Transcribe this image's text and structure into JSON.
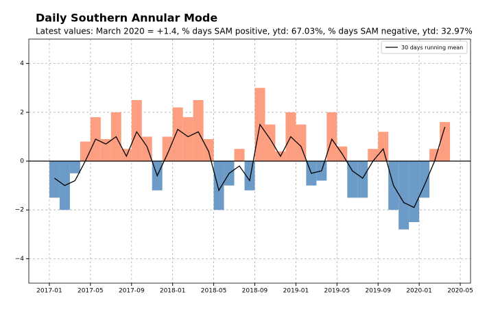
{
  "chart_data": {
    "type": "area",
    "title": "Daily Southern Annular Mode",
    "subtitle": "Latest values: March 2020 = +1.4, % days SAM positive, ytd: 67.03%, % days SAM negative, ytd: 32.97%",
    "x": [
      "2017-01",
      "2017-02",
      "2017-03",
      "2017-04",
      "2017-05",
      "2017-06",
      "2017-07",
      "2017-08",
      "2017-09",
      "2017-10",
      "2017-11",
      "2017-12",
      "2018-01",
      "2018-02",
      "2018-03",
      "2018-04",
      "2018-05",
      "2018-06",
      "2018-07",
      "2018-08",
      "2018-09",
      "2018-10",
      "2018-11",
      "2018-12",
      "2019-01",
      "2019-02",
      "2019-03",
      "2019-04",
      "2019-05",
      "2019-06",
      "2019-07",
      "2019-08",
      "2019-09",
      "2019-10",
      "2019-11",
      "2019-12",
      "2020-01",
      "2020-02",
      "2020-03"
    ],
    "values": [
      -1.5,
      -2.0,
      -0.5,
      0.8,
      1.8,
      0.9,
      2.0,
      0.5,
      2.5,
      1.0,
      -1.2,
      1.0,
      2.2,
      1.8,
      2.5,
      0.9,
      -2.0,
      -1.0,
      0.5,
      -1.2,
      3.0,
      1.5,
      0.4,
      2.0,
      1.5,
      -1.0,
      -0.8,
      2.0,
      0.6,
      -1.5,
      -1.5,
      0.5,
      1.2,
      -2.0,
      -2.8,
      -2.5,
      -1.5,
      0.5,
      1.6
    ],
    "positive_color": "#fc9e7f",
    "negative_color": "#6b9bc6",
    "series": [
      {
        "name": "30 days running mean",
        "color": "#000000",
        "values": [
          -0.7,
          -1.0,
          -0.8,
          0.0,
          0.9,
          0.7,
          1.0,
          0.2,
          1.2,
          0.6,
          -0.6,
          0.3,
          1.3,
          1.0,
          1.2,
          0.4,
          -1.2,
          -0.5,
          -0.2,
          -0.8,
          1.5,
          0.9,
          0.2,
          1.0,
          0.6,
          -0.5,
          -0.4,
          0.9,
          0.3,
          -0.4,
          -0.7,
          0.0,
          0.5,
          -1.0,
          -1.7,
          -1.9,
          -1.0,
          0.0,
          1.4
        ]
      }
    ],
    "xlim": [
      "2016-11",
      "2020-06"
    ],
    "xticks": [
      "2017-01",
      "2017-05",
      "2017-09",
      "2018-01",
      "2018-05",
      "2018-09",
      "2019-01",
      "2019-05",
      "2019-09",
      "2020-01",
      "2020-05"
    ],
    "ylim": [
      -5,
      5
    ],
    "yticks": [
      {
        "value": -4,
        "label": "−4"
      },
      {
        "value": -2,
        "label": "−2"
      },
      0,
      2,
      4
    ],
    "grid": true,
    "legend": "upper right"
  }
}
